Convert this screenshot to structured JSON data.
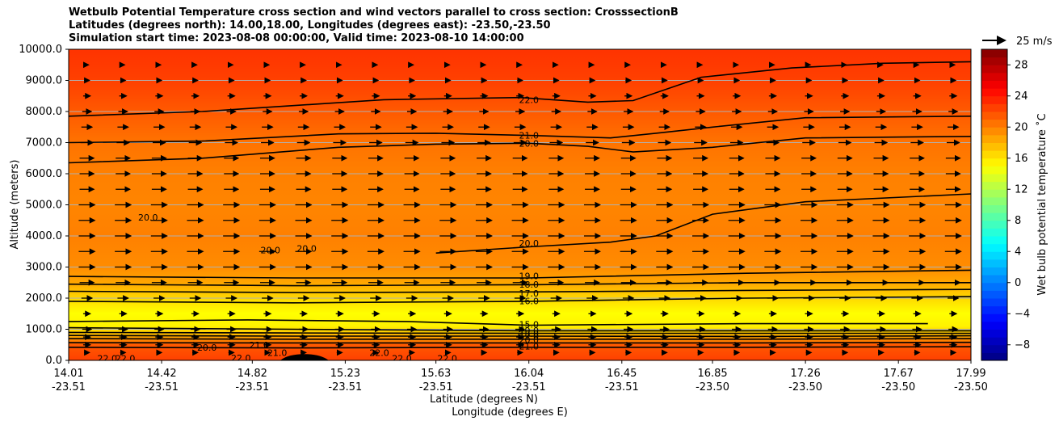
{
  "chart_data": {
    "type": "heatmap",
    "title_lines": [
      "Wetbulb Potential Temperature cross section and wind vectors parallel to cross section: CrosssectionB",
      "Latitudes (degrees north): 14.00,18.00, Longitudes (degrees east): -23.50,-23.50",
      "Simulation start time: 2023-08-08 00:00:00, Valid time: 2023-08-10 14:00:00"
    ],
    "xlabel_1": "Latitude (degrees N)",
    "xlabel_2": "Longitude (degrees E)",
    "ylabel": "Altitude (meters)",
    "colorbar_label": "Wet bulb potential temperature ˚C",
    "ylim": [
      0,
      10000
    ],
    "y_ticks": [
      "0.0",
      "1000.0",
      "2000.0",
      "3000.0",
      "4000.0",
      "5000.0",
      "6000.0",
      "7000.0",
      "8000.0",
      "9000.0",
      "10000.0"
    ],
    "y_tick_values": [
      0,
      1000,
      2000,
      3000,
      4000,
      5000,
      6000,
      7000,
      8000,
      9000,
      10000
    ],
    "x_ticks": [
      {
        "lat": "14.01",
        "lon": "-23.51"
      },
      {
        "lat": "14.42",
        "lon": "-23.51"
      },
      {
        "lat": "14.82",
        "lon": "-23.51"
      },
      {
        "lat": "15.23",
        "lon": "-23.51"
      },
      {
        "lat": "15.63",
        "lon": "-23.51"
      },
      {
        "lat": "16.04",
        "lon": "-23.51"
      },
      {
        "lat": "16.45",
        "lon": "-23.51"
      },
      {
        "lat": "16.85",
        "lon": "-23.50"
      },
      {
        "lat": "17.26",
        "lon": "-23.50"
      },
      {
        "lat": "17.67",
        "lon": "-23.50"
      },
      {
        "lat": "17.99",
        "lon": "-23.50"
      }
    ],
    "colorbar_range": [
      -10,
      30
    ],
    "colorbar_ticks": [
      "-8",
      "-4",
      "0",
      "4",
      "8",
      "12",
      "16",
      "20",
      "24",
      "28"
    ],
    "colorbar_tick_values": [
      -8,
      -4,
      0,
      4,
      8,
      12,
      16,
      20,
      24,
      28
    ],
    "quiver_key": "25 m/s",
    "temperature_profile": [
      {
        "z": 0,
        "t": 22.5
      },
      {
        "z": 500,
        "t": 21.5
      },
      {
        "z": 900,
        "t": 17.0
      },
      {
        "z": 1100,
        "t": 15.5
      },
      {
        "z": 1500,
        "t": 15.0
      },
      {
        "z": 2000,
        "t": 16.5
      },
      {
        "z": 2500,
        "t": 18.5
      },
      {
        "z": 3000,
        "t": 19.5
      },
      {
        "z": 4000,
        "t": 20.0
      },
      {
        "z": 5000,
        "t": 19.8
      },
      {
        "z": 6000,
        "t": 20.0
      },
      {
        "z": 7000,
        "t": 20.5
      },
      {
        "z": 8000,
        "t": 21.5
      },
      {
        "z": 9000,
        "t": 22.5
      },
      {
        "z": 10000,
        "t": 23.0
      }
    ],
    "contours": [
      {
        "label": "22.0",
        "points": [
          [
            14.01,
            7850
          ],
          [
            14.6,
            8000
          ],
          [
            15.4,
            8380
          ],
          [
            16.0,
            8450
          ],
          [
            16.3,
            8300
          ],
          [
            16.5,
            8350
          ],
          [
            16.8,
            9100
          ],
          [
            17.2,
            9400
          ],
          [
            17.6,
            9550
          ],
          [
            17.99,
            9600
          ]
        ]
      },
      {
        "label": "21.0",
        "points": [
          [
            14.01,
            7000
          ],
          [
            14.6,
            7050
          ],
          [
            15.2,
            7280
          ],
          [
            15.63,
            7300
          ],
          [
            16.04,
            7230
          ],
          [
            16.4,
            7150
          ],
          [
            16.6,
            7300
          ],
          [
            16.85,
            7500
          ],
          [
            17.26,
            7800
          ],
          [
            17.99,
            7850
          ]
        ]
      },
      {
        "label": "20.0",
        "points": [
          [
            14.01,
            6350
          ],
          [
            14.6,
            6500
          ],
          [
            15.2,
            6850
          ],
          [
            15.63,
            6950
          ],
          [
            16.04,
            6980
          ],
          [
            16.3,
            6880
          ],
          [
            16.5,
            6700
          ],
          [
            16.85,
            6850
          ],
          [
            17.26,
            7150
          ],
          [
            17.99,
            7200
          ]
        ]
      },
      {
        "label": "20.0",
        "points": [
          [
            15.63,
            3450
          ],
          [
            16.04,
            3650
          ],
          [
            16.4,
            3800
          ],
          [
            16.6,
            4000
          ],
          [
            16.85,
            4700
          ],
          [
            17.26,
            5100
          ],
          [
            17.99,
            5350
          ]
        ]
      },
      {
        "label": "19.0",
        "points": [
          [
            14.01,
            2700
          ],
          [
            15.0,
            2650
          ],
          [
            16.04,
            2650
          ],
          [
            17.0,
            2800
          ],
          [
            17.99,
            2900
          ]
        ]
      },
      {
        "label": "18.0",
        "points": [
          [
            14.01,
            2450
          ],
          [
            15.0,
            2400
          ],
          [
            16.04,
            2430
          ],
          [
            17.0,
            2500
          ],
          [
            17.99,
            2500
          ]
        ]
      },
      {
        "label": "17.0",
        "points": [
          [
            14.01,
            2220
          ],
          [
            15.0,
            2180
          ],
          [
            16.04,
            2200
          ],
          [
            17.0,
            2250
          ],
          [
            17.99,
            2280
          ]
        ]
      },
      {
        "label": "16.0",
        "points": [
          [
            14.01,
            1900
          ],
          [
            15.0,
            1850
          ],
          [
            16.04,
            1900
          ],
          [
            17.0,
            2000
          ],
          [
            17.99,
            2050
          ]
        ]
      },
      {
        "label": "15.0",
        "points": [
          [
            14.01,
            1250
          ],
          [
            14.8,
            1300
          ],
          [
            15.5,
            1250
          ],
          [
            16.04,
            1130
          ],
          [
            17.0,
            1180
          ],
          [
            17.8,
            1180
          ]
        ]
      },
      {
        "label": "16.0",
        "points": [
          [
            14.01,
            1050
          ],
          [
            15.0,
            1000
          ],
          [
            16.04,
            950
          ],
          [
            17.0,
            950
          ],
          [
            17.99,
            950
          ]
        ]
      },
      {
        "label": "17.0",
        "points": [
          [
            14.01,
            900
          ],
          [
            15.0,
            880
          ],
          [
            16.04,
            870
          ],
          [
            17.0,
            870
          ],
          [
            17.99,
            870
          ]
        ]
      },
      {
        "label": "18.0",
        "points": [
          [
            14.01,
            800
          ],
          [
            15.0,
            780
          ],
          [
            16.04,
            780
          ],
          [
            17.0,
            770
          ],
          [
            17.99,
            790
          ]
        ]
      },
      {
        "label": "19.0",
        "points": [
          [
            14.01,
            700
          ],
          [
            15.0,
            680
          ],
          [
            16.04,
            680
          ],
          [
            17.0,
            680
          ],
          [
            17.99,
            700
          ]
        ]
      },
      {
        "label": "20.0",
        "points": [
          [
            14.01,
            570
          ],
          [
            15.0,
            560
          ],
          [
            16.04,
            560
          ],
          [
            17.0,
            560
          ],
          [
            17.99,
            580
          ]
        ]
      },
      {
        "label": "21.0",
        "points": [
          [
            14.01,
            420
          ],
          [
            15.0,
            400
          ],
          [
            16.04,
            420
          ],
          [
            17.0,
            420
          ],
          [
            17.99,
            440
          ]
        ]
      }
    ],
    "contour_labels": [
      {
        "text": "22.0",
        "lat": 16.04,
        "z": 8380
      },
      {
        "text": "21.0",
        "lat": 16.04,
        "z": 7230
      },
      {
        "text": "20.0",
        "lat": 16.04,
        "z": 6980
      },
      {
        "text": "20.0",
        "lat": 16.04,
        "z": 3760
      },
      {
        "text": "20.0",
        "lat": 14.36,
        "z": 4600
      },
      {
        "text": "20.0",
        "lat": 14.9,
        "z": 3550
      },
      {
        "text": "20.0",
        "lat": 15.06,
        "z": 3600
      },
      {
        "text": "19.0",
        "lat": 16.04,
        "z": 2720
      },
      {
        "text": "18.0",
        "lat": 16.04,
        "z": 2440
      },
      {
        "text": "17.0",
        "lat": 16.04,
        "z": 2150
      },
      {
        "text": "16.0",
        "lat": 16.04,
        "z": 1910
      },
      {
        "text": "15.0",
        "lat": 16.04,
        "z": 1150
      },
      {
        "text": "19.0",
        "lat": 16.04,
        "z": 960
      },
      {
        "text": "18.0",
        "lat": 16.04,
        "z": 860
      },
      {
        "text": "17.0",
        "lat": 16.04,
        "z": 760
      },
      {
        "text": "20.0",
        "lat": 16.04,
        "z": 660
      },
      {
        "text": "21.0",
        "lat": 16.04,
        "z": 450
      },
      {
        "text": "22.0",
        "lat": 14.18,
        "z": 60
      },
      {
        "text": "22.0",
        "lat": 14.26,
        "z": 60
      },
      {
        "text": "20.0",
        "lat": 14.62,
        "z": 420
      },
      {
        "text": "22.0",
        "lat": 14.77,
        "z": 80
      },
      {
        "text": "21.0",
        "lat": 14.85,
        "z": 500
      },
      {
        "text": "21.0",
        "lat": 14.93,
        "z": 250
      },
      {
        "text": "22.0",
        "lat": 15.38,
        "z": 250
      },
      {
        "text": "22.0",
        "lat": 15.48,
        "z": 60
      },
      {
        "text": "22.0",
        "lat": 15.68,
        "z": 60
      }
    ],
    "wind_vectors": {
      "u_direction": "positive (parallel to cross section)",
      "levels_m": [
        250,
        500,
        750,
        1000,
        1500,
        2000,
        2500,
        3000,
        3500,
        4000,
        4500,
        5000,
        5500,
        6000,
        6500,
        7000,
        7500,
        8000,
        8500,
        9000,
        9500
      ],
      "approx_speed_m_s": [
        3,
        4,
        4,
        5,
        4,
        6,
        8,
        9,
        9,
        9,
        9,
        9,
        8,
        8,
        8,
        7,
        6,
        5,
        4,
        3,
        2
      ]
    },
    "terrain": {
      "lat_center": 15.05,
      "max_height_m": 200
    }
  }
}
